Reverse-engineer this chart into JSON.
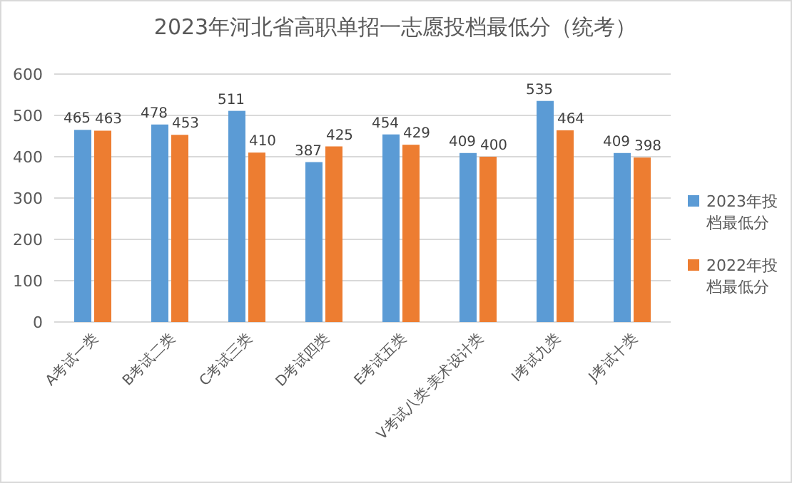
{
  "chart_data": {
    "type": "bar",
    "title": "2023年河北省高职单招一志愿投档最低分（统考）",
    "categories": [
      "A考试一类",
      "B考试二类",
      "C考试三类",
      "D考试四类",
      "E考试五类",
      "V考试八类-美术设计类",
      "I考试九类",
      "J考试十类"
    ],
    "series": [
      {
        "name": "2023年投档最低分",
        "color": "#5b9bd5",
        "values": [
          465,
          478,
          511,
          387,
          454,
          409,
          535,
          409
        ]
      },
      {
        "name": "2022年投档最低分",
        "color": "#ed7d31",
        "values": [
          463,
          453,
          410,
          425,
          429,
          400,
          464,
          398
        ]
      }
    ],
    "ylim": [
      0,
      600
    ],
    "yticks": [
      0,
      100,
      200,
      300,
      400,
      500,
      600
    ],
    "grid": "y",
    "legend": "right",
    "data_labels": true
  }
}
